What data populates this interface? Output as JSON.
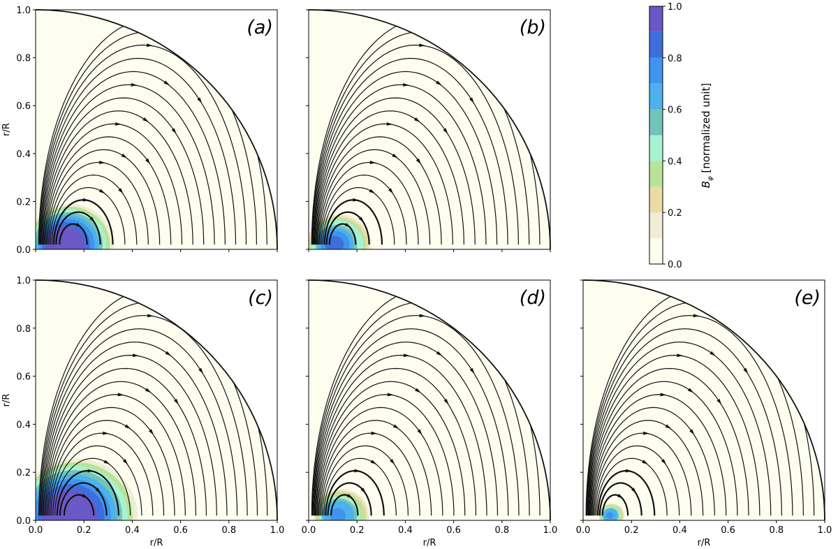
{
  "figure": {
    "panel_labels": [
      "(a)",
      "(b)",
      "(c)",
      "(d)",
      "(e)"
    ],
    "axis_label": "r/R",
    "colorbar": {
      "label_symbol": "B",
      "label_subscript": "φ",
      "label_text": " [normalized unit]",
      "ticks": [
        "0.0",
        "0.2",
        "0.4",
        "0.6",
        "0.8",
        "1.0"
      ],
      "levels": [
        {
          "from": 0.0,
          "to": 0.1,
          "color": "#fdfdf0"
        },
        {
          "from": 0.1,
          "to": 0.2,
          "color": "#f0edd6"
        },
        {
          "from": 0.2,
          "to": 0.3,
          "color": "#ecdba3"
        },
        {
          "from": 0.3,
          "to": 0.4,
          "color": "#b8e49a"
        },
        {
          "from": 0.4,
          "to": 0.5,
          "color": "#a8f2d4"
        },
        {
          "from": 0.5,
          "to": 0.6,
          "color": "#72c4b9"
        },
        {
          "from": 0.6,
          "to": 0.7,
          "color": "#4cb2ee"
        },
        {
          "from": 0.7,
          "to": 0.8,
          "color": "#3f95ee"
        },
        {
          "from": 0.8,
          "to": 0.9,
          "color": "#3d6fdc"
        },
        {
          "from": 0.9,
          "to": 1.0,
          "color": "#6a58c6"
        }
      ]
    }
  },
  "chart_data": [
    {
      "type": "heatmap",
      "panel": "(a)",
      "xlabel": "",
      "ylabel": "r/R",
      "xlim": [
        0.0,
        1.0
      ],
      "ylim": [
        0.0,
        1.0
      ],
      "xticks": [],
      "yticks": [
        "0.0",
        "0.2",
        "0.4",
        "0.6",
        "0.8",
        "1.0"
      ],
      "torus_center": [
        0.15,
        0.02
      ],
      "bphi_peak": 1.0,
      "bphi_extent": 0.2,
      "n_loops": 17
    },
    {
      "type": "heatmap",
      "panel": "(b)",
      "xlabel": "",
      "ylabel": "",
      "xlim": [
        0.0,
        1.0
      ],
      "ylim": [
        0.0,
        1.0
      ],
      "xticks": [],
      "yticks": [],
      "torus_center": [
        0.13,
        0.02
      ],
      "bphi_peak": 0.8,
      "bphi_extent": 0.15,
      "n_loops": 17
    },
    {
      "type": "heatmap",
      "panel": "(c)",
      "xlabel": "r/R",
      "ylabel": "r/R",
      "xlim": [
        0.0,
        1.0
      ],
      "ylim": [
        0.0,
        1.0
      ],
      "xticks": [
        "0.0",
        "0.2",
        "0.4",
        "0.6",
        "0.8",
        "1.0"
      ],
      "yticks": [
        "0.0",
        "0.2",
        "0.4",
        "0.6",
        "0.8",
        "1.0"
      ],
      "torus_center": [
        0.18,
        0.02
      ],
      "bphi_peak": 1.0,
      "bphi_extent": 0.28,
      "n_loops": 17
    },
    {
      "type": "heatmap",
      "panel": "(d)",
      "xlabel": "r/R",
      "ylabel": "",
      "xlim": [
        0.0,
        1.0
      ],
      "ylim": [
        0.0,
        1.0
      ],
      "xticks": [
        "0.0",
        "0.2",
        "0.4",
        "0.6",
        "0.8",
        "1.0"
      ],
      "yticks": [],
      "torus_center": [
        0.14,
        0.02
      ],
      "bphi_peak": 0.75,
      "bphi_extent": 0.13,
      "n_loops": 17
    },
    {
      "type": "heatmap",
      "panel": "(e)",
      "xlabel": "r/R",
      "ylabel": "",
      "xlim": [
        0.0,
        1.0
      ],
      "ylim": [
        0.0,
        1.0
      ],
      "xticks": [
        "0.0",
        "0.2",
        "0.4",
        "0.6",
        "0.8",
        "1.0"
      ],
      "yticks": [],
      "torus_center": [
        0.12,
        0.02
      ],
      "bphi_peak": 0.75,
      "bphi_extent": 0.06,
      "n_loops": 17
    }
  ]
}
